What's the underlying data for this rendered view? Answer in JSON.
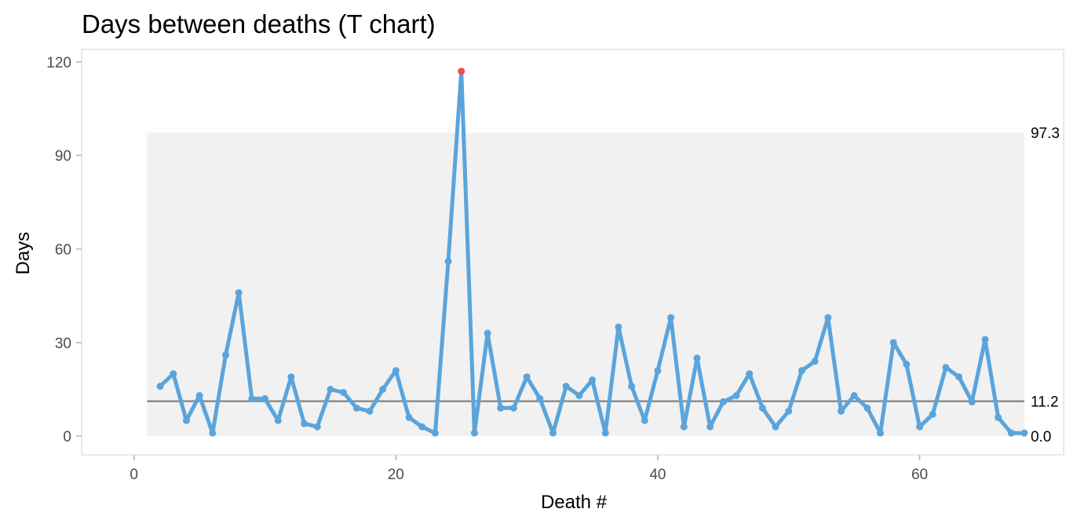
{
  "chart_data": {
    "type": "line",
    "title": "Days between deaths (T chart)",
    "xlabel": "Death #",
    "ylabel": "Days",
    "xlim": [
      -4,
      71
    ],
    "ylim": [
      -6,
      124
    ],
    "xticks": [
      0,
      20,
      40,
      60
    ],
    "yticks": [
      0,
      30,
      60,
      90,
      120
    ],
    "grid": false,
    "limits": {
      "upper": 97.3,
      "center": 11.2,
      "lower": 0.0,
      "upper_label": "97.3",
      "center_label": "11.2",
      "lower_label": "0.0",
      "x_start": 1,
      "x_end": 68
    },
    "series": [
      {
        "x": [
          2,
          3,
          4,
          5,
          6,
          7,
          8,
          9,
          10,
          11,
          12,
          13,
          14,
          15,
          16,
          17,
          18,
          19,
          20,
          21,
          22,
          23,
          24,
          25,
          26,
          27,
          28,
          29,
          30,
          31,
          32,
          33,
          34,
          35,
          36,
          37,
          38,
          39,
          40,
          41,
          42,
          43,
          44,
          45,
          46,
          47,
          48,
          49,
          50,
          51,
          52,
          53,
          54,
          55,
          56,
          57,
          58,
          59,
          60,
          61,
          62,
          63,
          64,
          65,
          66,
          67,
          68
        ],
        "values": [
          16,
          20,
          5,
          13,
          1,
          26,
          46,
          12,
          12,
          5,
          19,
          4,
          3,
          15,
          14,
          9,
          8,
          15,
          21,
          6,
          3,
          1,
          56,
          117,
          1,
          33,
          9,
          9,
          19,
          12,
          1,
          16,
          13,
          18,
          1,
          35,
          16,
          5,
          21,
          38,
          3,
          25,
          3,
          11,
          13,
          20,
          9,
          3,
          8,
          21,
          24,
          38,
          8,
          13,
          9,
          1,
          30,
          23,
          3,
          7,
          22,
          19,
          11,
          31,
          6,
          1,
          1
        ]
      }
    ],
    "colors": {
      "line": "#5BA4DB",
      "signal": "#E8524A",
      "center_line": "#8C8C8C",
      "limit_band": "#F1F1F1",
      "axis_line": "#E3E3E3",
      "tick_mark": "#B3B3B3"
    }
  }
}
